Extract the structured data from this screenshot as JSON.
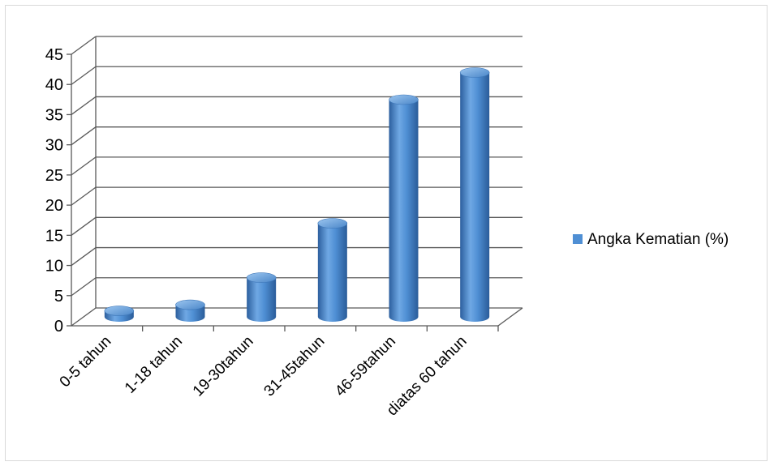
{
  "chart_data": {
    "type": "bar",
    "style": "3d-cylinder",
    "categories": [
      "0-5 tahun",
      "1-18 tahun",
      "19-30tahun",
      "31-45tahun",
      "46-59tahun",
      "diatas 60 tahun"
    ],
    "series": [
      {
        "name": "Angka Kematian (%)",
        "values": [
          1,
          2,
          6.5,
          15.5,
          36,
          40.5
        ]
      }
    ],
    "yticks": [
      "0",
      "5",
      "10",
      "15",
      "20",
      "25",
      "30",
      "35",
      "40",
      "45"
    ],
    "ylim": [
      0,
      45
    ],
    "grid": true,
    "legend_position": "right",
    "colors": {
      "bar": "#4f8fd4",
      "bar_dark": "#2c5f9e",
      "bar_light": "#8dbbea",
      "grid": "#595959"
    }
  }
}
